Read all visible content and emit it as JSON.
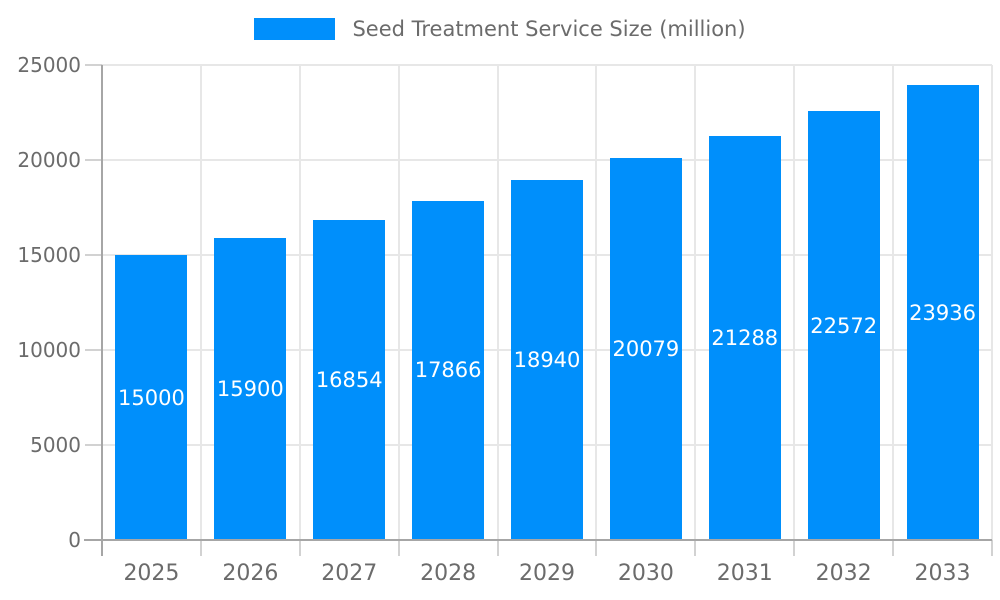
{
  "chart_data": {
    "type": "bar",
    "title": "Seed Treatment Service Size (million)",
    "categories": [
      "2025",
      "2026",
      "2027",
      "2028",
      "2029",
      "2030",
      "2031",
      "2032",
      "2033"
    ],
    "values": [
      15000,
      15900,
      16854,
      17866,
      18940,
      20079,
      21288,
      22572,
      23936
    ],
    "value_labels": [
      "15000",
      "15900",
      "16854",
      "17866",
      "18940",
      "20079",
      "21288",
      "22572",
      "23936"
    ],
    "xlabel": "",
    "ylabel": "",
    "ylim": [
      0,
      25000
    ],
    "y_ticks": [
      0,
      5000,
      10000,
      15000,
      20000,
      25000
    ],
    "y_tick_labels": [
      "0",
      "5000",
      "10000",
      "15000",
      "20000",
      "25000"
    ],
    "grid": true,
    "legend_position": "top-center",
    "colors": {
      "bar": "#008FFB",
      "value_label": "#ffffff",
      "axis_text": "#6b6b6b",
      "grid_line": "#e7e7e7",
      "axis_line": "#a6a6a6",
      "tick": "#d2d2d2",
      "background": "#ffffff"
    }
  }
}
